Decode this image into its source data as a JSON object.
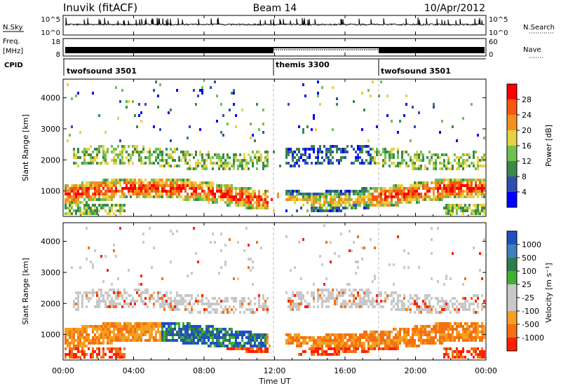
{
  "header": {
    "station": "Inuvik (fitACF)",
    "beam": "Beam 14",
    "date": "10/Apr/2012"
  },
  "top_panels": {
    "nsky_label": "N.Sky",
    "nsky_ticks": [
      "10^5",
      "10^0"
    ],
    "nsearch_label": "N.Search",
    "nsearch_ticks": [
      "10^5",
      "10^0"
    ],
    "freq_label_1": "Freq.",
    "freq_label_2": "[MHz]",
    "freq_ticks": [
      "18",
      "8"
    ],
    "nave_label": "Nave",
    "nave_ticks": [
      "60",
      "0"
    ],
    "cpid_label": "CPID",
    "cpid_segments": [
      {
        "name": "twofsound 3501",
        "start_hour": 0
      },
      {
        "name": "themis 3300",
        "start_hour": 12
      },
      {
        "name": "twofsound 3501",
        "start_hour": 18
      }
    ]
  },
  "chart_data": [
    {
      "type": "heatmap",
      "name": "Power",
      "ylabel": "Slant Range [km]",
      "xlabel": "",
      "ylim": [
        180,
        4600
      ],
      "y_ticks": [
        "1000",
        "2000",
        "3000",
        "4000"
      ],
      "y_tick_values": [
        1000,
        2000,
        3000,
        4000
      ],
      "x_ticks": [
        "00:00",
        "04:00",
        "08:00",
        "12:00",
        "16:00",
        "20:00",
        "00:00"
      ],
      "x_tick_values": [
        0,
        4,
        8,
        12,
        16,
        20,
        24
      ],
      "colorbar_title": "Power [dB]",
      "colorbar_ticks": [
        "4",
        "8",
        "12",
        "16",
        "20",
        "24",
        "28"
      ],
      "colorbar_colors": [
        "#0000ff",
        "#2f4fb0",
        "#3a8a4a",
        "#70c050",
        "#e8d040",
        "#f59020",
        "#f35a10",
        "#ff0000"
      ]
    },
    {
      "type": "heatmap",
      "name": "Velocity",
      "ylabel": "Slant Range [km]",
      "xlabel": "Time UT",
      "ylim": [
        180,
        4600
      ],
      "y_ticks": [
        "1000",
        "2000",
        "3000",
        "4000"
      ],
      "y_tick_values": [
        1000,
        2000,
        3000,
        4000
      ],
      "x_ticks": [
        "00:00",
        "04:00",
        "08:00",
        "12:00",
        "16:00",
        "20:00",
        "00:00"
      ],
      "x_tick_values": [
        0,
        4,
        8,
        12,
        16,
        20,
        24
      ],
      "colorbar_title": "Velocity [m s⁻¹]",
      "colorbar_ticks": [
        "1000",
        "500",
        "100",
        "25",
        "-25",
        "-100",
        "-500",
        "-1000"
      ],
      "colorbar_colors": [
        "#2050c0",
        "#3f7fbf",
        "#2e7d4f",
        "#40b030",
        "#c8c8c8",
        "#c8c8c8",
        "#f5a020",
        "#f57010",
        "#ff2000"
      ]
    }
  ],
  "colors": {
    "axis": "#000000",
    "dashed_line": "#bbbbbb"
  }
}
